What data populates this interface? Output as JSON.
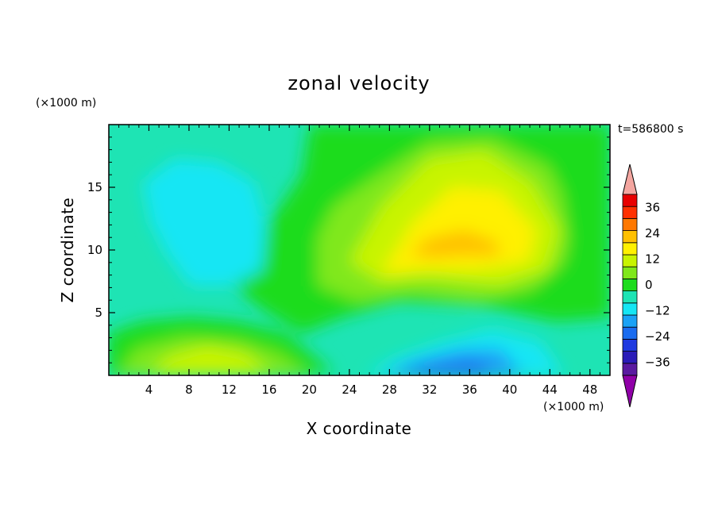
{
  "chart_data": {
    "type": "heatmap",
    "title": "zonal velocity",
    "xlabel": "X coordinate",
    "ylabel": "Z coordinate",
    "x_units": "(×1000 m)",
    "y_units": "(×1000 m)",
    "time_label": "t=586800 s",
    "xlim": [
      0,
      50
    ],
    "ylim": [
      0,
      20
    ],
    "x_ticks": [
      4,
      8,
      12,
      16,
      20,
      24,
      28,
      32,
      36,
      40,
      44,
      48
    ],
    "y_ticks": [
      5,
      10,
      15
    ],
    "colorbar": {
      "levels": [
        -42,
        -36,
        -30,
        -24,
        -18,
        -12,
        -6,
        0,
        6,
        12,
        18,
        24,
        30,
        36,
        42
      ],
      "colors": [
        "#9000a8",
        "#5a1aa0",
        "#2b1cb8",
        "#1f3ae0",
        "#1a6cf0",
        "#1aa2f6",
        "#16e6f4",
        "#1ee4b4",
        "#1ddc1d",
        "#80e81a",
        "#c8f400",
        "#fff000",
        "#ffc000",
        "#ff7800",
        "#ff3000",
        "#e80000",
        "#f4a6a0"
      ],
      "tick_labels": [
        "36",
        "24",
        "12",
        "0",
        "−12",
        "−24",
        "−36"
      ],
      "tick_values": [
        36,
        24,
        12,
        0,
        -12,
        -24,
        -36
      ]
    },
    "grid": "off"
  }
}
